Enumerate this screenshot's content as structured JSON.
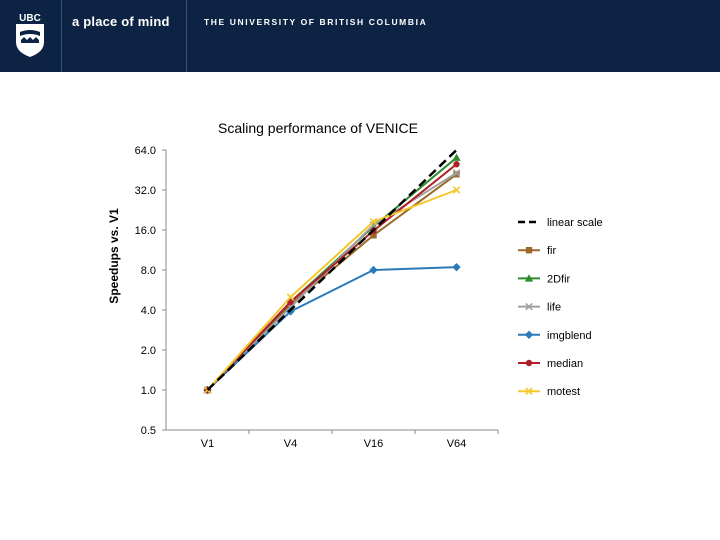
{
  "header": {
    "logo_text": "UBC",
    "tagline": "a place of mind",
    "university": "THE UNIVERSITY OF BRITISH COLUMBIA",
    "background": "#0c2344"
  },
  "chart_data": {
    "type": "line",
    "title": "Scaling performance of VENICE",
    "ylabel": "Speedups vs. V1",
    "xlabel": "",
    "y_scale": "log2",
    "ylim": [
      0.5,
      64
    ],
    "yticks": [
      "0.5",
      "1.0",
      "2.0",
      "4.0",
      "8.0",
      "16.0",
      "32.0",
      "64.0"
    ],
    "ytick_values": [
      0.5,
      1,
      2,
      4,
      8,
      16,
      32,
      64
    ],
    "categories": [
      "V1",
      "V4",
      "V16",
      "V64"
    ],
    "grid": false,
    "legend_position": "right",
    "series": [
      {
        "name": "linear scale",
        "values": [
          1,
          4,
          16,
          64
        ],
        "color": "#000000",
        "marker": "none",
        "dash": true
      },
      {
        "name": "fir",
        "values": [
          1,
          4.4,
          14.6,
          42
        ],
        "color": "#9b6a2a",
        "marker": "square"
      },
      {
        "name": "2Dfir",
        "values": [
          1,
          4.6,
          17,
          56
        ],
        "color": "#2e8b2e",
        "marker": "triangle"
      },
      {
        "name": "life",
        "values": [
          1,
          4.2,
          17.5,
          43
        ],
        "color": "#a0a0a0",
        "marker": "x"
      },
      {
        "name": "imgblend",
        "values": [
          1,
          3.9,
          8.0,
          8.4
        ],
        "color": "#2b7bb9",
        "marker": "diamond"
      },
      {
        "name": "median",
        "values": [
          1,
          4.6,
          15.8,
          50
        ],
        "color": "#b01e2a",
        "marker": "circle"
      },
      {
        "name": "motest",
        "values": [
          1,
          5.0,
          18.5,
          32
        ],
        "color": "#f2c82c",
        "marker": "x"
      }
    ]
  }
}
